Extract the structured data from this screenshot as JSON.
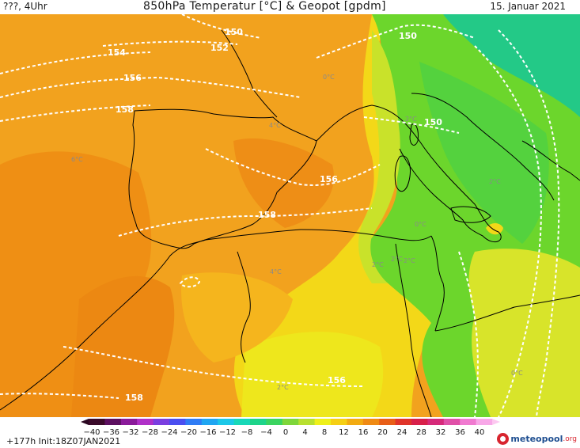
{
  "header": {
    "left": "???, 4Uhr",
    "title": "850hPa Temperatur [°C] & Geopot [gpdm]",
    "date": "15. Januar 2021"
  },
  "map": {
    "geopotential_labels": [
      "150",
      "152",
      "154",
      "156",
      "158",
      "150",
      "150",
      "156",
      "158",
      "156",
      "158"
    ],
    "temperature_labels": [
      "0°C",
      "4°C",
      "6°C",
      "2°C",
      "4°C",
      "0°C",
      "2°C",
      "2°C",
      "2°C",
      "0°C",
      "2°C",
      "2°C"
    ]
  },
  "colorbar": {
    "ticks": [
      "−40",
      "−36",
      "−32",
      "−28",
      "−24",
      "−20",
      "−16",
      "−12",
      "−8",
      "−4",
      "0",
      "4",
      "8",
      "12",
      "16",
      "20",
      "24",
      "28",
      "32",
      "36",
      "40"
    ],
    "colors": [
      "#3a0a2a",
      "#5c0f5f",
      "#8a1a9a",
      "#b030c8",
      "#7a3ee0",
      "#4a4ef0",
      "#2f7cf5",
      "#1fa6f2",
      "#1cc8e8",
      "#18d8b8",
      "#1ed48a",
      "#3bd460",
      "#7ed63a",
      "#b8e030",
      "#eef01a",
      "#f5cf14",
      "#f2ab12",
      "#ef8a14",
      "#e85e18",
      "#e0342a",
      "#d8204a",
      "#d62a7a",
      "#e050a8",
      "#f07ad0",
      "#f8a8e8"
    ]
  },
  "footer": {
    "init": "+177h  Init:18Z07JAN2021",
    "logo_text": "meteopool",
    "logo_tld": ".org"
  },
  "colors": {
    "warm_orange": "#f2a21e",
    "deep_orange": "#ef8f14",
    "yellow": "#f2e21a",
    "green": "#6cd62c",
    "teal": "#23c987"
  }
}
